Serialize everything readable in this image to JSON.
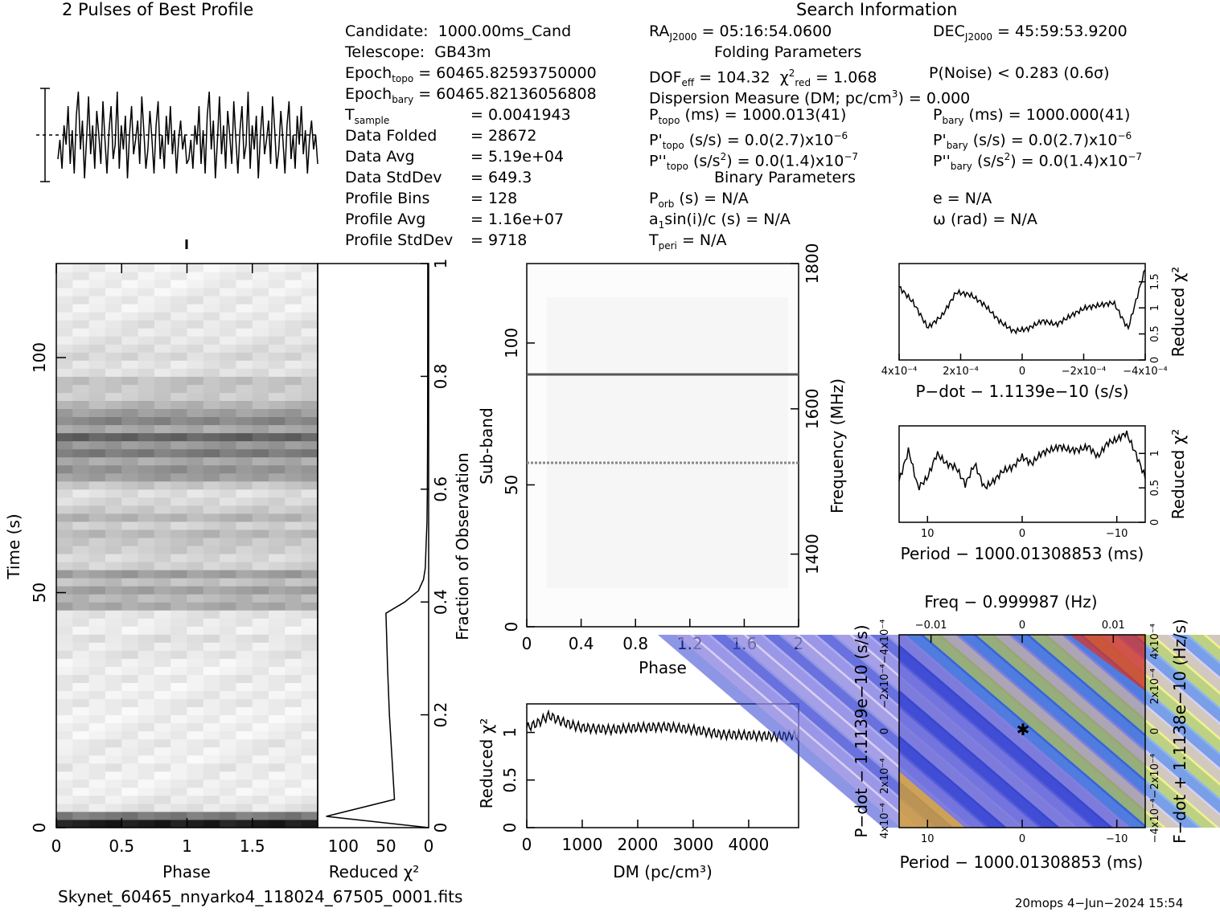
{
  "profile_title": "2 Pulses of Best Profile",
  "search_title": "Search Information",
  "folding_title": "Folding Parameters",
  "binary_title": "Binary Parameters",
  "candidate": {
    "candidate_label": "Candidate:",
    "candidate_value": "1000.00ms_Cand",
    "telescope_label": "Telescope:",
    "telescope_value": "GB43m",
    "epoch_topo_label": "Epoch",
    "epoch_topo_sub": "topo",
    "epoch_topo_value": "= 60465.82593750000",
    "epoch_bary_label": "Epoch",
    "epoch_bary_sub": "bary",
    "epoch_bary_value": "= 60465.82136056808",
    "tsample_label": "T",
    "tsample_sub": "sample",
    "tsample_value": "=   0.0041943",
    "folded_label": "Data Folded",
    "folded_value": "=   28672",
    "avg_label": "Data Avg",
    "avg_value": "=   5.19e+04",
    "std_label": "Data StdDev",
    "std_value": "=   649.3",
    "bins_label": "Profile Bins",
    "bins_value": "=   128",
    "pavg_label": "Profile Avg",
    "pavg_value": "=   1.16e+07",
    "pstd_label": "Profile StdDev",
    "pstd_value": "=   9718"
  },
  "search": {
    "ra_label": "RA",
    "ra_sub": "J2000",
    "ra_value": "= 05:16:54.0600",
    "dec_label": "DEC",
    "dec_sub": "J2000",
    "dec_value": "= 45:59:53.9200",
    "dof_label": "DOF",
    "dof_sub": "eff",
    "dof_value": "= 104.32",
    "chi_label": "χ",
    "chi_sup": "2",
    "chi_sub": "red",
    "chi_value": "= 1.068",
    "pnoise": "P(Noise) < 0.283   (0.6σ)",
    "dm_text": "Dispersion Measure (DM; pc/cm",
    "dm_sup": "3",
    "dm_value": ") = 0.000",
    "ptopo_label": "P",
    "ptopo_sub": "topo",
    "ptopo_value": "(ms) =  1000.013(41)",
    "pbary_label": "P",
    "pbary_sub": "bary",
    "pbary_value": "(ms) =  1000.000(41)",
    "pdtopo_label": "P'",
    "pdtopo_sub": "topo",
    "pdtopo_value": "(s/s) = 0.0(2.7)x10",
    "pdtopo_exp": "−6",
    "pdbary_label": "P'",
    "pdbary_sub": "bary",
    "pdbary_value": "(s/s) = 0.0(2.7)x10",
    "pdbary_exp": "−6",
    "pddtopo_label": "P''",
    "pddtopo_sub": "topo",
    "pddtopo_value": "(s/s",
    "pddtopo_sup": "2",
    "pddtopo_value2": ") = 0.0(1.4)x10",
    "pddtopo_exp": "−7",
    "pddbary_label": "P''",
    "pddbary_sub": "bary",
    "pddbary_value": "(s/s",
    "pddbary_sup": "2",
    "pddbary_value2": ") = 0.0(1.4)x10",
    "pddbary_exp": "−7",
    "porb_label": "P",
    "porb_sub": "orb",
    "porb_value": "(s) = N/A",
    "e_text": "e = N/A",
    "a1_label": "a",
    "a1_sub": "1",
    "a1_value": "sin(i)/c (s) = N/A",
    "omega_text": "ω (rad) = N/A",
    "tperi_label": "T",
    "tperi_sub": "peri",
    "tperi_value": "= N/A"
  },
  "footer": {
    "filename": "Skynet_60465_nnyarko4_118024_67505_0001.fits",
    "stamp": "20mops   4−Jun−2024 15:54"
  },
  "chart_data": [
    {
      "type": "line",
      "name": "profile",
      "title": "2 Pulses of Best Profile",
      "xlabel": "",
      "ylabel": "",
      "xlim": [
        0,
        2
      ],
      "note_values": "noisy profile, two copies of one pulse period",
      "values": [
        0.5,
        0.9,
        0.3,
        1.2,
        0.8,
        1.6,
        0.4,
        1.1,
        0.2,
        1.4,
        1.9,
        0.7,
        1.3,
        0.1,
        0.9,
        1.8,
        0.6,
        1.2,
        0.3,
        1.5,
        1.0,
        0.4,
        1.7,
        0.9,
        0.2,
        1.1,
        1.6,
        0.5,
        0.8,
        1.9,
        0.3,
        1.2,
        0.7,
        1.4,
        0.1,
        1.0,
        1.6,
        0.6,
        0.9,
        1.3,
        0.4,
        1.8,
        1.1,
        0.3,
        0.7,
        1.5,
        0.9,
        0.2,
        1.2,
        1.7,
        0.5,
        1.0,
        0.3,
        1.4,
        0.8,
        1.6,
        0.6,
        1.1,
        0.2,
        0.9,
        1.3,
        0.7,
        1.0,
        0.4
      ]
    },
    {
      "type": "heatmap",
      "name": "time-phase",
      "xlabel": "Phase",
      "ylabel": "Time (s)",
      "xticks": [
        "0",
        "0.5",
        "1",
        "1.5"
      ],
      "yticks": [
        "0",
        "50",
        "100"
      ],
      "xlim": [
        0,
        2
      ],
      "ylim": [
        0,
        120
      ],
      "row_intensity": [
        0.95,
        0.55,
        0.1,
        0.08,
        0.05,
        0.06,
        0.05,
        0.08,
        0.05,
        0.06,
        0.08,
        0.05,
        0.06,
        0.05,
        0.05,
        0.08,
        0.06,
        0.05,
        0.08,
        0.05,
        0.06,
        0.1,
        0.08,
        0.12,
        0.06,
        0.08,
        0.1,
        0.35,
        0.28,
        0.38,
        0.25,
        0.4,
        0.18,
        0.15,
        0.2,
        0.22,
        0.28,
        0.18,
        0.3,
        0.2,
        0.15,
        0.12,
        0.22,
        0.4,
        0.45,
        0.35,
        0.55,
        0.42,
        0.65,
        0.35,
        0.5,
        0.4,
        0.3,
        0.2,
        0.22,
        0.25,
        0.12,
        0.1,
        0.15,
        0.12,
        0.1,
        0.08,
        0.1,
        0.08,
        0.06,
        0.08,
        0.06,
        0.05,
        0.06,
        0.05
      ]
    },
    {
      "type": "line",
      "name": "reduced-chi2-vs-time",
      "xlabel": "Reduced χ²",
      "ylabel": "Fraction of Observation",
      "xticks": [
        "100",
        "50",
        "0"
      ],
      "yticks": [
        "0",
        "0.2",
        "0.4",
        "0.6",
        "0.8",
        "1"
      ],
      "xlim": [
        130,
        0
      ],
      "ylim": [
        0,
        1
      ],
      "x": [
        0,
        120,
        40,
        42,
        44,
        46,
        48,
        50,
        28,
        12,
        6,
        4,
        3,
        2,
        1.5,
        1.2,
        1.1,
        1.0
      ],
      "y": [
        0,
        0.02,
        0.05,
        0.1,
        0.15,
        0.2,
        0.28,
        0.38,
        0.4,
        0.42,
        0.44,
        0.46,
        0.5,
        0.54,
        0.6,
        0.7,
        0.8,
        1.0
      ]
    },
    {
      "type": "heatmap",
      "name": "subband-phase",
      "xlabel": "Phase",
      "ylabel": "Sub-band",
      "y2label": "Frequency (MHz)",
      "xticks": [
        "0",
        "0.4",
        "0.8",
        "1.2",
        "1.6",
        "2"
      ],
      "yticks": [
        "0",
        "50",
        "100"
      ],
      "y2ticks": [
        "1400",
        "1600",
        "1800"
      ],
      "xlim": [
        0,
        2
      ],
      "ylim": [
        0,
        128
      ],
      "y2lim": [
        1300,
        1800
      ],
      "bright_subbands": [
        89,
        58
      ]
    },
    {
      "type": "line",
      "name": "reduced-chi2-vs-dm",
      "xlabel": "DM (pc/cm³)",
      "ylabel": "Reduced χ²",
      "xticks": [
        "0",
        "1000",
        "2000",
        "3000",
        "4000"
      ],
      "yticks": [
        "0",
        "0.5",
        "1"
      ],
      "xlim": [
        0,
        4900
      ],
      "ylim": [
        0,
        1.3
      ],
      "x": [
        0,
        200,
        400,
        600,
        800,
        1000,
        1500,
        2000,
        2500,
        3000,
        3500,
        4000,
        4500,
        4900
      ],
      "y": [
        1.05,
        1.1,
        1.18,
        1.12,
        1.08,
        1.05,
        1.03,
        1.05,
        1.06,
        1.03,
        0.98,
        0.97,
        0.96,
        0.97
      ]
    },
    {
      "type": "line",
      "name": "reduced-chi2-vs-pdot",
      "xlabel": "P−dot − 1.1139e−10 (s/s)",
      "ylabel": "Reduced χ²",
      "xticks": [
        "4x10⁻⁴",
        "2x10⁻⁴",
        "0",
        "−2x10⁻⁴",
        "−4x10⁻⁴"
      ],
      "yticks": [
        "0",
        "0.5",
        "1",
        "1.5"
      ],
      "xlim": [
        0.00043,
        -0.00043
      ],
      "ylim": [
        0,
        1.85
      ],
      "x": [
        0.00043,
        0.00038,
        0.00033,
        0.00028,
        0.00023,
        0.00018,
        0.00013,
        8e-05,
        3e-05,
        -2e-05,
        -7e-05,
        -0.00012,
        -0.00017,
        -0.00022,
        -0.00027,
        -0.00032,
        -0.00037,
        -0.00043
      ],
      "y": [
        1.4,
        1.1,
        0.62,
        0.85,
        1.3,
        1.25,
        1.05,
        0.75,
        0.55,
        0.6,
        0.75,
        0.68,
        0.85,
        1.0,
        1.05,
        1.1,
        0.6,
        1.75
      ]
    },
    {
      "type": "line",
      "name": "reduced-chi2-vs-period",
      "xlabel": "Period − 1000.01308853 (ms)",
      "ylabel": "Reduced χ²",
      "xticks": [
        "10",
        "0",
        "−10"
      ],
      "yticks": [
        "0",
        "0.5",
        "1"
      ],
      "xlim": [
        13,
        -13
      ],
      "ylim": [
        0,
        1.4
      ],
      "x": [
        13,
        12,
        11,
        10,
        9,
        8,
        7,
        6,
        5,
        4,
        3,
        2,
        1,
        0,
        -1,
        -2,
        -3,
        -4,
        -5,
        -6,
        -7,
        -8,
        -9,
        -10,
        -11,
        -12,
        -13
      ],
      "y": [
        0.6,
        1.05,
        0.5,
        0.65,
        1.0,
        0.85,
        0.8,
        0.55,
        0.85,
        0.5,
        0.6,
        0.75,
        0.8,
        0.95,
        0.85,
        1.0,
        1.05,
        1.1,
        1.05,
        1.05,
        1.1,
        0.95,
        1.15,
        1.2,
        1.3,
        1.0,
        0.65
      ]
    },
    {
      "type": "heatmap",
      "name": "pdot-period",
      "title": "Freq − 0.999987 (Hz)",
      "xlabel": "Period − 1000.01308853 (ms)",
      "ylabel": "P−dot − 1.1139e−10 (s/s)",
      "y2label": "F−dot + 1.1138e−10 (Hz/s)",
      "xticks": [
        "10",
        "0",
        "−10"
      ],
      "x2ticks": [
        "−0.01",
        "0",
        "0.01"
      ],
      "yticks": [
        "4x10⁻⁴",
        "2x10⁻⁴",
        "0",
        "−2x10⁻⁴",
        "−4x10⁻⁴"
      ],
      "y2ticks": [
        "−4x10⁻⁴",
        "−2x10⁻⁴",
        "0",
        "2x10⁻⁴",
        "4x10⁻⁴"
      ],
      "xlim": [
        13,
        -13
      ],
      "ylim": [
        0.00043,
        -0.00043
      ],
      "best": [
        0,
        0
      ]
    }
  ]
}
